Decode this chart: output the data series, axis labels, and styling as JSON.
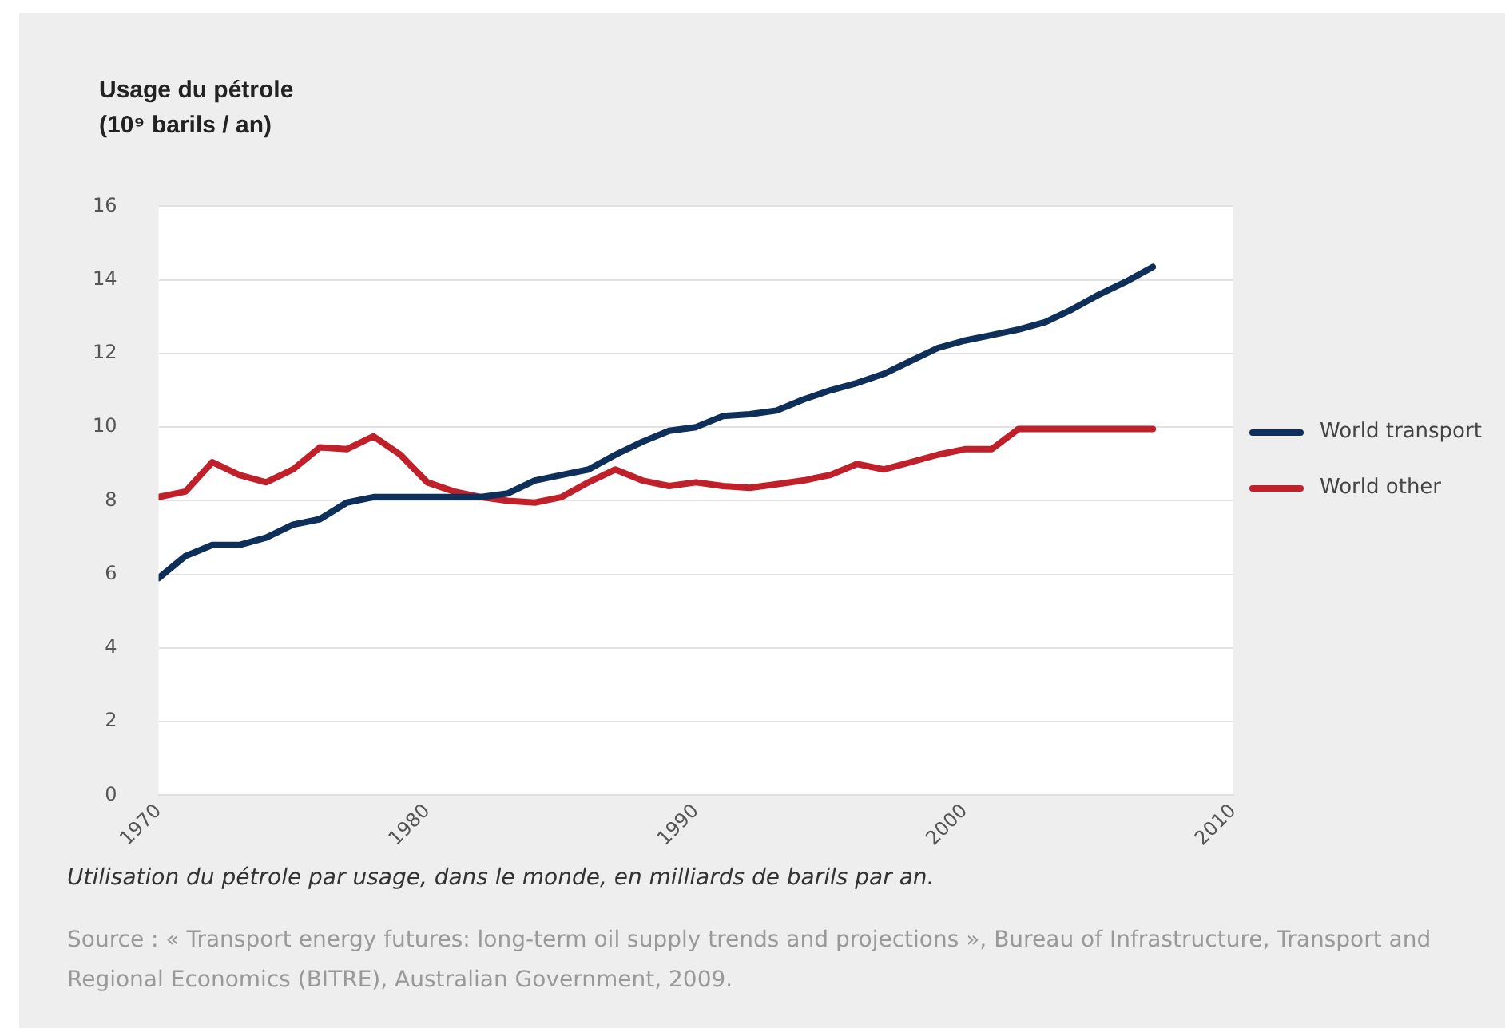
{
  "chart_data": {
    "type": "line",
    "title": "Usage du pétrole",
    "ylabel": "(10⁹ barils / an)",
    "x": [
      1970,
      1971,
      1972,
      1973,
      1974,
      1975,
      1976,
      1977,
      1978,
      1979,
      1980,
      1981,
      1982,
      1983,
      1984,
      1985,
      1986,
      1987,
      1988,
      1989,
      1990,
      1991,
      1992,
      1993,
      1994,
      1995,
      1996,
      1997,
      1998,
      1999,
      2000,
      2001,
      2002,
      2003,
      2004,
      2005,
      2006,
      2007
    ],
    "series": [
      {
        "name": "World transport",
        "color": "#0d2f5a",
        "values": [
          5.9,
          6.5,
          6.8,
          6.8,
          7.0,
          7.35,
          7.5,
          7.95,
          8.1,
          8.1,
          8.1,
          8.1,
          8.1,
          8.2,
          8.55,
          8.7,
          8.85,
          9.25,
          9.6,
          9.9,
          10.0,
          10.3,
          10.35,
          10.45,
          10.75,
          11.0,
          11.2,
          11.45,
          11.8,
          12.15,
          12.35,
          12.5,
          12.65,
          12.85,
          13.2,
          13.6,
          13.95,
          14.35
        ]
      },
      {
        "name": "World other",
        "color": "#c0202a",
        "values": [
          8.1,
          8.25,
          9.05,
          8.7,
          8.5,
          8.85,
          9.45,
          9.4,
          9.75,
          9.25,
          8.5,
          8.25,
          8.1,
          8.0,
          7.95,
          8.1,
          8.5,
          8.85,
          8.55,
          8.4,
          8.5,
          8.4,
          8.35,
          8.45,
          8.55,
          8.7,
          9.0,
          8.85,
          9.05,
          9.25,
          9.4,
          9.4,
          9.95,
          9.95,
          9.95,
          9.95,
          9.95,
          9.95
        ]
      }
    ],
    "xlim": [
      1970,
      2010
    ],
    "xticks": [
      1970,
      1980,
      1990,
      2000,
      2010
    ],
    "ylim": [
      0,
      16
    ],
    "yticks": [
      0,
      2,
      4,
      6,
      8,
      10,
      12,
      14,
      16
    ],
    "grid": "y",
    "legend": "right",
    "marker": "none",
    "line_style": "solid",
    "annotations": [
      "Utilisation du pétrole par usage, dans le monde, en milliards de barils par an.",
      "Source : « Transport energy futures: long-term oil supply trends and projections », Bureau of Infrastructure, Transport and Regional Economics (BITRE), Australian Government, 2009."
    ]
  }
}
